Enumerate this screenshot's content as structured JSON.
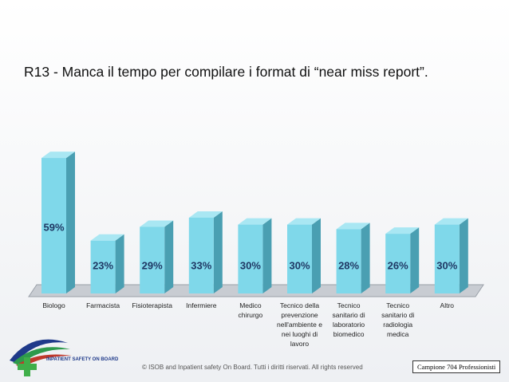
{
  "chart_data": {
    "type": "bar",
    "title": "R13 - Manca il tempo per compilare i format di “near miss report”.",
    "categories": [
      "Biologo",
      "Farmacista",
      "Fisioterapista",
      "Infermiere",
      "Medico chirurgo",
      "Tecnico della prevenzione nell'ambiente e nei luoghi di lavoro",
      "Tecnico sanitario di laboratorio biomedico",
      "Tecnico sanitario di radiologia medica",
      "Altro"
    ],
    "values": [
      59,
      23,
      29,
      33,
      30,
      30,
      28,
      26,
      30
    ],
    "value_labels": [
      "59%",
      "23%",
      "29%",
      "33%",
      "30%",
      "30%",
      "28%",
      "26%",
      "30%"
    ],
    "color": "#7fd8ea"
  },
  "footer": {
    "logo": "INPATIENT SAFETY ON BOARD",
    "copyright": "© ISOB and Inpatient safety On Board. Tutti i diritti riservati. All rights reserved",
    "sample": "Campione 704 Professionisti"
  }
}
